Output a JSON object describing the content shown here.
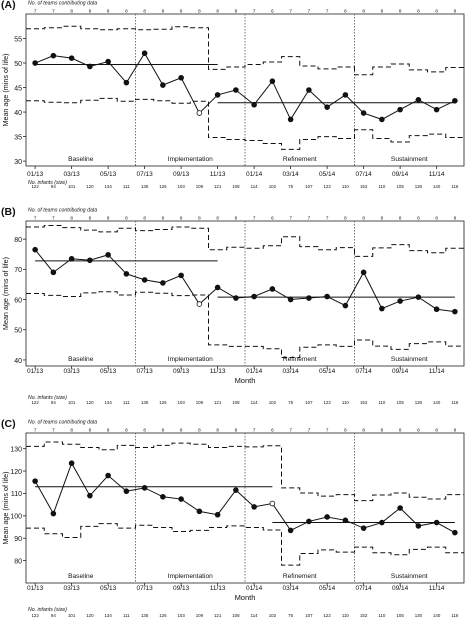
{
  "months": [
    "01/13",
    "02/13",
    "03/13",
    "04/13",
    "05/13",
    "06/13",
    "07/13",
    "08/13",
    "09/13",
    "10/13",
    "11/13",
    "12/13",
    "01/14",
    "02/14",
    "03/14",
    "04/14",
    "05/14",
    "06/14",
    "07/14",
    "08/14",
    "09/14",
    "10/14",
    "11/14",
    "12/14"
  ],
  "x_tick_labels": [
    "01/13",
    "03/13",
    "05/13",
    "07/13",
    "09/13",
    "11/13",
    "01/14",
    "03/14",
    "05/14",
    "07/14",
    "09/14",
    "11/14"
  ],
  "teams_label": "No. of teams contributing data",
  "teams": [
    "7",
    "7",
    "8",
    "8",
    "8",
    "8",
    "8",
    "8",
    "8",
    "8",
    "8",
    "8",
    "7",
    "6",
    "7",
    "7",
    "7",
    "8",
    "8",
    "8",
    "8",
    "8",
    "8",
    "8"
  ],
  "infants_label": "No. infants (size)",
  "infants": [
    "122",
    "94",
    "101",
    "120",
    "134",
    "111",
    "135",
    "126",
    "103",
    "109",
    "121",
    "108",
    "114",
    "102",
    "75",
    "107",
    "122",
    "110",
    "152",
    "110",
    "105",
    "130",
    "140",
    "116"
  ],
  "infants_c": [
    "122",
    "94",
    "101",
    "120",
    "134",
    "111",
    "135",
    "126",
    "103",
    "109",
    "121",
    "108",
    "114",
    "102",
    "75",
    "107",
    "122",
    "110",
    "152",
    "110",
    "105",
    "130",
    "140",
    "116"
  ],
  "phases": [
    "Baseline",
    "Implementation",
    "Refinement",
    "Sustainment"
  ],
  "xlabel": "Month",
  "ylabel": "Mean age (mins of life)",
  "colors": {
    "line": "#111111",
    "phase_divider": "#666666",
    "background": "#ffffff"
  },
  "chart_data": [
    {
      "panel_label": "(A)",
      "type": "line",
      "ylim": [
        29,
        60
      ],
      "y_ticks": [
        30,
        35,
        40,
        45,
        50,
        55
      ],
      "values": [
        50.0,
        51.5,
        51.0,
        49.3,
        50.3,
        46.0,
        52.0,
        45.5,
        47.0,
        39.8,
        43.5,
        44.5,
        41.5,
        46.3,
        38.5,
        44.5,
        41.0,
        43.5,
        39.8,
        38.5,
        40.5,
        42.5,
        40.5,
        42.3
      ],
      "open_points": [
        9
      ],
      "center_line": [
        {
          "from": 0,
          "to": 10,
          "value": 49.7
        },
        {
          "from": 10,
          "to": 23,
          "value": 41.9
        }
      ],
      "upper_limit": [
        57.0,
        57.2,
        57.5,
        57.0,
        56.8,
        57.0,
        56.8,
        56.9,
        57.4,
        57.2,
        48.7,
        49.2,
        49.7,
        50.2,
        51.3,
        49.4,
        48.8,
        49.2,
        47.6,
        49.2,
        49.8,
        48.6,
        48.2,
        49.1
      ],
      "lower_limit": [
        42.3,
        42.0,
        41.9,
        42.4,
        42.8,
        42.2,
        42.6,
        42.3,
        41.8,
        42.2,
        34.8,
        34.4,
        34.2,
        33.6,
        32.4,
        34.4,
        35.0,
        34.6,
        36.4,
        34.6,
        33.9,
        35.2,
        35.5,
        34.8
      ]
    },
    {
      "panel_label": "(B)",
      "type": "line",
      "ylim": [
        38,
        86
      ],
      "y_ticks": [
        40,
        50,
        60,
        70,
        80
      ],
      "values": [
        76.5,
        69.0,
        73.5,
        73.0,
        74.8,
        68.5,
        66.5,
        65.5,
        68.0,
        58.5,
        64.0,
        60.5,
        61.0,
        63.5,
        60.0,
        60.5,
        61.0,
        58.0,
        69.0,
        57.0,
        59.5,
        60.8,
        56.8,
        56.0
      ],
      "open_points": [
        9
      ],
      "center_line": [
        {
          "from": 0,
          "to": 10,
          "value": 72.8
        },
        {
          "from": 10,
          "to": 23,
          "value": 60.8
        }
      ],
      "upper_limit": [
        84.0,
        84.5,
        83.8,
        83.0,
        82.4,
        83.6,
        82.8,
        83.2,
        84.0,
        83.6,
        76.5,
        77.3,
        77.0,
        77.8,
        80.8,
        77.5,
        76.5,
        77.2,
        74.3,
        77.1,
        78.2,
        76.2,
        75.5,
        77.0
      ],
      "lower_limit": [
        62.0,
        61.4,
        61.0,
        62.2,
        62.6,
        61.5,
        62.4,
        62.1,
        61.3,
        61.5,
        45.0,
        44.5,
        44.5,
        43.7,
        40.8,
        44.2,
        45.0,
        44.5,
        46.6,
        44.6,
        43.5,
        45.4,
        46.0,
        44.6
      ]
    },
    {
      "panel_label": "(C)",
      "type": "line",
      "ylim": [
        70,
        137
      ],
      "y_ticks": [
        80,
        90,
        100,
        110,
        120,
        130
      ],
      "values": [
        115.5,
        101.0,
        123.5,
        109.0,
        118.0,
        111.0,
        112.5,
        108.5,
        107.5,
        102.0,
        100.5,
        111.5,
        104.0,
        105.5,
        93.5,
        97.5,
        99.5,
        98.0,
        94.5,
        97.0,
        103.5,
        95.5,
        97.0,
        92.5
      ],
      "open_points": [
        13
      ],
      "center_line": [
        {
          "from": 0,
          "to": 13,
          "value": 113.0
        },
        {
          "from": 13,
          "to": 23,
          "value": 97.0
        }
      ],
      "upper_limit": [
        131.0,
        133.0,
        132.0,
        130.5,
        129.5,
        131.5,
        130.5,
        131.5,
        132.5,
        132.0,
        130.5,
        131.0,
        130.8,
        131.3,
        112.5,
        110.2,
        108.8,
        109.5,
        106.8,
        109.3,
        110.2,
        108.3,
        107.5,
        109.5
      ],
      "lower_limit": [
        94.5,
        92.0,
        90.3,
        95.3,
        96.5,
        94.5,
        95.8,
        94.8,
        93.0,
        93.5,
        94.8,
        95.5,
        94.8,
        93.7,
        78.0,
        83.2,
        84.8,
        83.8,
        86.0,
        83.5,
        82.6,
        85.0,
        86.0,
        83.5
      ]
    }
  ]
}
